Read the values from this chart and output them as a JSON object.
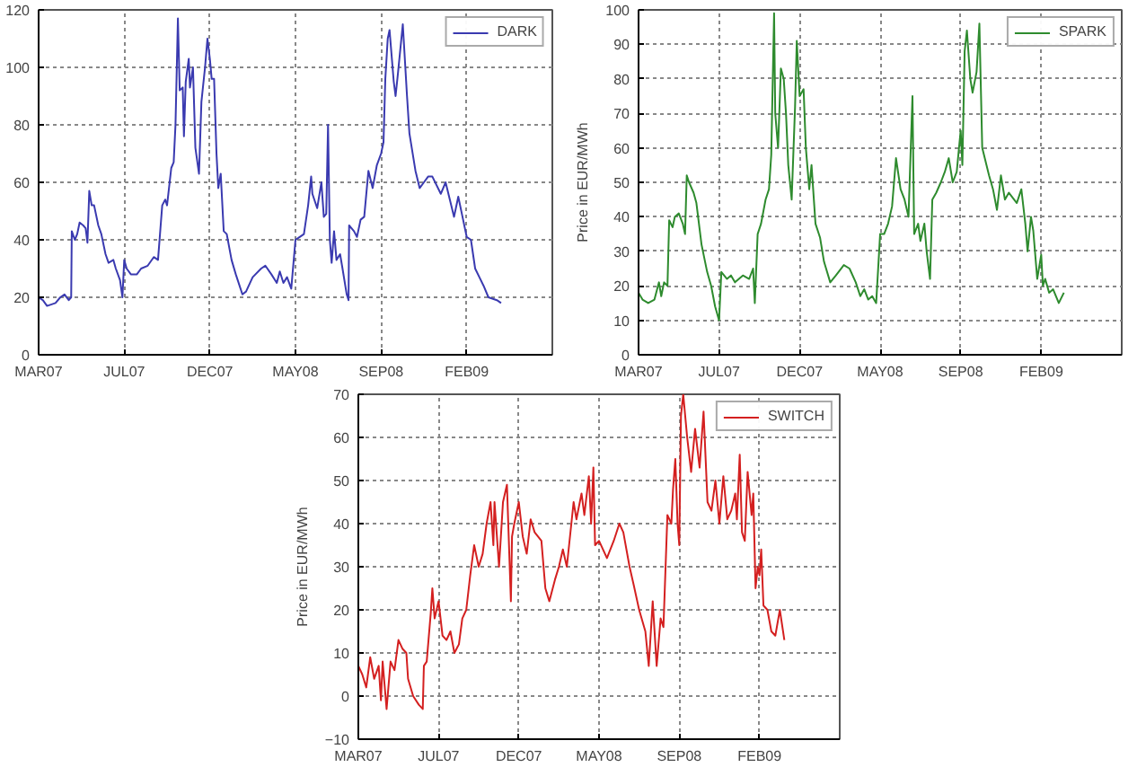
{
  "chart_data": [
    {
      "type": "line",
      "xlim": [
        "2007-03-05",
        "2009-07-04"
      ],
      "xticks": [
        {
          "value": "2007-03-05",
          "label": "MAR07"
        },
        {
          "value": "2007-07-25",
          "label": "JUL07"
        },
        {
          "value": "2007-12-14",
          "label": "DEC07"
        },
        {
          "value": "2008-05-04",
          "label": "MAY08"
        },
        {
          "value": "2008-09-23",
          "label": "SEP08"
        },
        {
          "value": "2009-02-12",
          "label": "FEB09"
        }
      ],
      "ylim": [
        0,
        120
      ],
      "yticks": [
        0,
        20,
        40,
        60,
        80,
        100,
        120
      ],
      "grid": true,
      "legend": "top right",
      "series": [
        {
          "name": "DARK",
          "color": "#3a3ab0",
          "x": [
            "2007-03-05",
            "2007-03-12",
            "2007-03-19",
            "2007-04-02",
            "2007-04-10",
            "2007-04-17",
            "2007-04-24",
            "2007-04-28",
            "2007-04-29",
            "2007-05-04",
            "2007-05-08",
            "2007-05-12",
            "2007-05-18",
            "2007-05-22",
            "2007-05-25",
            "2007-05-28",
            "2007-06-01",
            "2007-06-05",
            "2007-06-12",
            "2007-06-17",
            "2007-06-24",
            "2007-06-29",
            "2007-07-07",
            "2007-07-11",
            "2007-07-18",
            "2007-07-22",
            "2007-07-25",
            "2007-07-29",
            "2007-08-05",
            "2007-08-15",
            "2007-08-22",
            "2007-09-02",
            "2007-09-12",
            "2007-09-19",
            "2007-09-26",
            "2007-10-01",
            "2007-10-04",
            "2007-10-11",
            "2007-10-15",
            "2007-10-18",
            "2007-10-22",
            "2007-10-25",
            "2007-10-30",
            "2007-11-01",
            "2007-11-04",
            "2007-11-09",
            "2007-11-11",
            "2007-11-16",
            "2007-11-20",
            "2007-11-26",
            "2007-11-30",
            "2007-12-06",
            "2007-12-10",
            "2007-12-14",
            "2007-12-17",
            "2007-12-21",
            "2007-12-25",
            "2007-12-28",
            "2008-01-01",
            "2008-01-06",
            "2008-01-11",
            "2008-01-19",
            "2008-01-26",
            "2008-02-06",
            "2008-02-12",
            "2008-02-23",
            "2008-03-08",
            "2008-03-15",
            "2008-03-25",
            "2008-04-03",
            "2008-04-08",
            "2008-04-14",
            "2008-04-20",
            "2008-04-27",
            "2008-05-04",
            "2008-05-11",
            "2008-05-18",
            "2008-05-25",
            "2008-05-30",
            "2008-06-01",
            "2008-06-09",
            "2008-06-16",
            "2008-06-20",
            "2008-06-24",
            "2008-06-27",
            "2008-06-30",
            "2008-07-03",
            "2008-07-07",
            "2008-07-11",
            "2008-07-17",
            "2008-07-21",
            "2008-07-28",
            "2008-07-31",
            "2008-08-01",
            "2008-08-09",
            "2008-08-14",
            "2008-08-20",
            "2008-08-26",
            "2008-09-02",
            "2008-09-09",
            "2008-09-16",
            "2008-09-23",
            "2008-09-27",
            "2008-09-30",
            "2008-10-04",
            "2008-10-07",
            "2008-10-14",
            "2008-10-17",
            "2008-10-21",
            "2008-10-29",
            "2008-11-05",
            "2008-11-09",
            "2008-11-19",
            "2008-11-26",
            "2008-12-03",
            "2008-12-10",
            "2008-12-17",
            "2008-12-31",
            "2009-01-08",
            "2009-01-15",
            "2009-01-22",
            "2009-01-29",
            "2009-02-05",
            "2009-02-12",
            "2009-02-19",
            "2009-02-26",
            "2009-03-05",
            "2009-03-12",
            "2009-03-20",
            "2009-04-03",
            "2009-04-10"
          ],
          "values": [
            20,
            19,
            17,
            18,
            20,
            21,
            19,
            20,
            43,
            40,
            42,
            46,
            45,
            44,
            39,
            57,
            52,
            52,
            45,
            42,
            35,
            32,
            33,
            30,
            26,
            20,
            33,
            30,
            28,
            28,
            30,
            31,
            34,
            33,
            52,
            54,
            52,
            65,
            67,
            80,
            117,
            92,
            93,
            76,
            95,
            103,
            93,
            100,
            72,
            63,
            88,
            100,
            110,
            103,
            96,
            96,
            70,
            58,
            63,
            43,
            42,
            33,
            28,
            21,
            22,
            27,
            30,
            31,
            28,
            25,
            29,
            25,
            27,
            23,
            40,
            41,
            42,
            52,
            62,
            56,
            51,
            60,
            48,
            49,
            80,
            40,
            32,
            43,
            33,
            35,
            30,
            21,
            19,
            45,
            43,
            41,
            47,
            48,
            64,
            58,
            66,
            70,
            74,
            96,
            110,
            113,
            95,
            90,
            98,
            115,
            90,
            77,
            64,
            58,
            60,
            62,
            62,
            56,
            60,
            54,
            48,
            55,
            48,
            41,
            40,
            30,
            27,
            24,
            20,
            19,
            18
          ]
        }
      ]
    },
    {
      "type": "line",
      "ylabel": "Price in EUR/MWh",
      "xlim": [
        "2007-03-05",
        "2009-07-04"
      ],
      "xticks": [
        {
          "value": "2007-03-05",
          "label": "MAR07"
        },
        {
          "value": "2007-07-25",
          "label": "JUL07"
        },
        {
          "value": "2007-12-14",
          "label": "DEC07"
        },
        {
          "value": "2008-05-04",
          "label": "MAY08"
        },
        {
          "value": "2008-09-23",
          "label": "SEP08"
        },
        {
          "value": "2009-02-12",
          "label": "FEB09"
        }
      ],
      "ylim": [
        0,
        100
      ],
      "yticks": [
        0,
        10,
        20,
        30,
        40,
        50,
        60,
        70,
        80,
        90,
        100
      ],
      "grid": true,
      "legend": "top right",
      "series": [
        {
          "name": "SPARK",
          "color": "#2e8b2e",
          "x": [
            "2007-03-05",
            "2007-03-12",
            "2007-03-22",
            "2007-04-02",
            "2007-04-10",
            "2007-04-14",
            "2007-04-19",
            "2007-04-25",
            "2007-04-28",
            "2007-05-04",
            "2007-05-08",
            "2007-05-15",
            "2007-05-22",
            "2007-05-26",
            "2007-05-29",
            "2007-06-02",
            "2007-06-10",
            "2007-06-15",
            "2007-06-24",
            "2007-07-04",
            "2007-07-11",
            "2007-07-18",
            "2007-07-25",
            "2007-07-29",
            "2007-08-08",
            "2007-08-15",
            "2007-08-22",
            "2007-09-05",
            "2007-09-16",
            "2007-09-23",
            "2007-09-26",
            "2007-10-01",
            "2007-10-07",
            "2007-10-15",
            "2007-10-21",
            "2007-10-25",
            "2007-10-30",
            "2007-11-01",
            "2007-11-06",
            "2007-11-11",
            "2007-11-16",
            "2007-11-20",
            "2007-11-24",
            "2007-11-30",
            "2007-12-06",
            "2007-12-09",
            "2007-12-14",
            "2007-12-21",
            "2007-12-25",
            "2007-12-31",
            "2008-01-04",
            "2008-01-11",
            "2008-01-19",
            "2008-01-26",
            "2008-02-06",
            "2008-02-16",
            "2008-03-01",
            "2008-03-11",
            "2008-03-22",
            "2008-03-30",
            "2008-04-06",
            "2008-04-13",
            "2008-04-20",
            "2008-04-27",
            "2008-05-04",
            "2008-05-11",
            "2008-05-18",
            "2008-05-25",
            "2008-06-01",
            "2008-06-09",
            "2008-06-16",
            "2008-06-23",
            "2008-06-30",
            "2008-07-03",
            "2008-07-10",
            "2008-07-14",
            "2008-07-21",
            "2008-07-25",
            "2008-07-31",
            "2008-08-04",
            "2008-08-11",
            "2008-08-19",
            "2008-08-26",
            "2008-09-02",
            "2008-09-09",
            "2008-09-16",
            "2008-09-23",
            "2008-09-26",
            "2008-09-30",
            "2008-10-04",
            "2008-10-10",
            "2008-10-14",
            "2008-10-21",
            "2008-10-26",
            "2008-10-31",
            "2008-11-12",
            "2008-11-19",
            "2008-11-26",
            "2008-12-03",
            "2008-12-10",
            "2008-12-17",
            "2008-12-31",
            "2009-01-08",
            "2009-01-15",
            "2009-01-19",
            "2009-01-25",
            "2009-01-29",
            "2009-02-05",
            "2009-02-12",
            "2009-02-15",
            "2009-02-19",
            "2009-02-26",
            "2009-03-05",
            "2009-03-15",
            "2009-03-24"
          ],
          "values": [
            18,
            16,
            15,
            16,
            21,
            17,
            21,
            20,
            39,
            37,
            40,
            41,
            38,
            35,
            52,
            50,
            47,
            44,
            32,
            24,
            20,
            14,
            10,
            24,
            22,
            23,
            21,
            23,
            22,
            25,
            15,
            35,
            38,
            45,
            48,
            58,
            99,
            70,
            60,
            83,
            80,
            70,
            55,
            45,
            72,
            91,
            75,
            77,
            60,
            48,
            55,
            38,
            34,
            27,
            21,
            23,
            26,
            25,
            21,
            17,
            19,
            16,
            17,
            15,
            35,
            35,
            38,
            43,
            57,
            48,
            45,
            40,
            75,
            35,
            38,
            33,
            38,
            30,
            22,
            45,
            47,
            50,
            53,
            57,
            50,
            53,
            65,
            55,
            88,
            94,
            80,
            76,
            82,
            96,
            60,
            52,
            48,
            42,
            52,
            45,
            47,
            44,
            48,
            38,
            30,
            40,
            36,
            22,
            29,
            20,
            22,
            18,
            19,
            15,
            18
          ]
        }
      ]
    },
    {
      "type": "line",
      "ylabel": "Price in EUR/MWh",
      "xlim": [
        "2007-03-05",
        "2009-07-04"
      ],
      "xticks": [
        {
          "value": "2007-03-05",
          "label": "MAR07"
        },
        {
          "value": "2007-07-25",
          "label": "JUL07"
        },
        {
          "value": "2007-12-14",
          "label": "DEC07"
        },
        {
          "value": "2008-05-04",
          "label": "MAY08"
        },
        {
          "value": "2008-09-23",
          "label": "SEP08"
        },
        {
          "value": "2009-02-12",
          "label": "FEB09"
        }
      ],
      "ylim": [
        -10,
        70
      ],
      "yticks": [
        -10,
        0,
        10,
        20,
        30,
        40,
        50,
        60,
        70
      ],
      "grid": true,
      "legend": "top right",
      "series": [
        {
          "name": "SWITCH",
          "color": "#d42020",
          "x": [
            "2007-03-05",
            "2007-03-12",
            "2007-03-19",
            "2007-03-26",
            "2007-04-02",
            "2007-04-10",
            "2007-04-14",
            "2007-04-17",
            "2007-04-24",
            "2007-05-01",
            "2007-05-08",
            "2007-05-15",
            "2007-05-22",
            "2007-05-29",
            "2007-06-01",
            "2007-06-10",
            "2007-06-20",
            "2007-06-27",
            "2007-06-29",
            "2007-07-04",
            "2007-07-11",
            "2007-07-14",
            "2007-07-18",
            "2007-07-25",
            "2007-08-01",
            "2007-08-08",
            "2007-08-15",
            "2007-08-22",
            "2007-08-30",
            "2007-09-05",
            "2007-09-12",
            "2007-09-19",
            "2007-09-26",
            "2007-10-04",
            "2007-10-11",
            "2007-10-18",
            "2007-10-25",
            "2007-10-30",
            "2007-11-01",
            "2007-11-09",
            "2007-11-16",
            "2007-11-23",
            "2007-11-30",
            "2007-12-02",
            "2007-12-06",
            "2007-12-14",
            "2007-12-21",
            "2007-12-28",
            "2008-01-04",
            "2008-01-11",
            "2008-01-23",
            "2008-01-30",
            "2008-02-06",
            "2008-02-16",
            "2008-02-23",
            "2008-03-01",
            "2008-03-08",
            "2008-03-20",
            "2008-03-25",
            "2008-04-03",
            "2008-04-08",
            "2008-04-16",
            "2008-04-20",
            "2008-04-24",
            "2008-04-27",
            "2008-05-04",
            "2008-05-18",
            "2008-05-30",
            "2008-06-09",
            "2008-06-16",
            "2008-06-27",
            "2008-07-04",
            "2008-07-14",
            "2008-07-25",
            "2008-07-31",
            "2008-08-07",
            "2008-08-14",
            "2008-08-21",
            "2008-08-26",
            "2008-09-02",
            "2008-09-09",
            "2008-09-12",
            "2008-09-16",
            "2008-09-20",
            "2008-09-23",
            "2008-09-26",
            "2008-09-30",
            "2008-10-07",
            "2008-10-14",
            "2008-10-21",
            "2008-10-29",
            "2008-11-05",
            "2008-11-12",
            "2008-11-19",
            "2008-11-26",
            "2008-12-03",
            "2008-12-10",
            "2008-12-17",
            "2008-12-24",
            "2008-12-31",
            "2009-01-03",
            "2009-01-08",
            "2009-01-12",
            "2009-01-17",
            "2009-01-22",
            "2009-01-29",
            "2009-02-01",
            "2009-02-05",
            "2009-02-09",
            "2009-02-12",
            "2009-02-15",
            "2009-02-19",
            "2009-02-26",
            "2009-03-05",
            "2009-03-12",
            "2009-03-20",
            "2009-03-28"
          ],
          "values": [
            7,
            5,
            2,
            9,
            4,
            7,
            -1,
            8,
            -3,
            8,
            6,
            13,
            11,
            10,
            4,
            0,
            -2,
            -3,
            7,
            8,
            19,
            25,
            18,
            22,
            14,
            13,
            15,
            10,
            12,
            18,
            20,
            28,
            35,
            30,
            33,
            40,
            45,
            35,
            45,
            30,
            45,
            49,
            22,
            37,
            40,
            45,
            37,
            33,
            41,
            38,
            36,
            25,
            22,
            27,
            30,
            34,
            30,
            45,
            41,
            47,
            42,
            51,
            40,
            53,
            35,
            36,
            32,
            36,
            40,
            38,
            30,
            26,
            20,
            15,
            7,
            22,
            7,
            18,
            16,
            42,
            40,
            48,
            55,
            40,
            35,
            65,
            70,
            60,
            52,
            62,
            53,
            66,
            45,
            43,
            50,
            40,
            51,
            41,
            43,
            47,
            41,
            56,
            38,
            36,
            52,
            42,
            47,
            25,
            30,
            28,
            34,
            21,
            20,
            15,
            14,
            20,
            13
          ]
        }
      ]
    }
  ]
}
